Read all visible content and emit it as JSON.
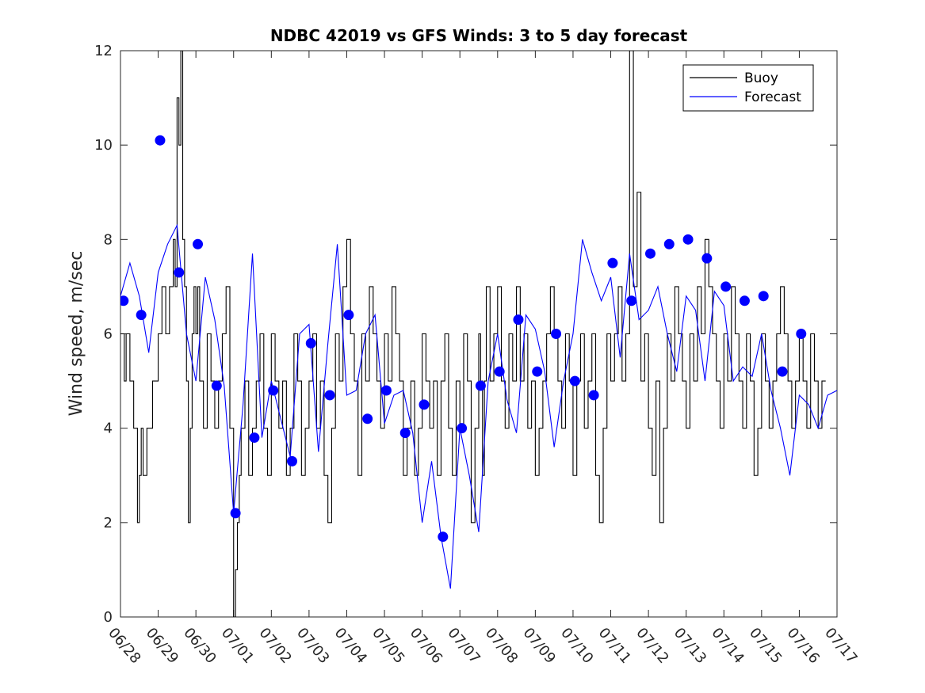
{
  "chart_data": {
    "type": "line",
    "title": "NDBC 42019 vs GFS Winds: 3 to 5 day forecast",
    "xlabel": "",
    "ylabel": "Wind speed, m/sec",
    "xlim": [
      "06/28",
      "07/17"
    ],
    "ylim": [
      0,
      12
    ],
    "x_tick_labels": [
      "06/28",
      "06/29",
      "06/30",
      "07/01",
      "07/02",
      "07/03",
      "07/04",
      "07/05",
      "07/06",
      "07/07",
      "07/08",
      "07/09",
      "07/10",
      "07/11",
      "07/12",
      "07/13",
      "07/14",
      "07/15",
      "07/16",
      "07/17"
    ],
    "y_ticks": [
      0,
      2,
      4,
      6,
      8,
      10,
      12
    ],
    "grid": false,
    "legend_position": "top-right",
    "colors": {
      "buoy": "#000000",
      "forecast": "#0000ff"
    },
    "series": [
      {
        "name": "Buoy",
        "style": "stepped line",
        "x_days_since_06_28": [
          0.0,
          0.1,
          0.15,
          0.25,
          0.35,
          0.45,
          0.5,
          0.55,
          0.6,
          0.7,
          0.85,
          1.0,
          1.1,
          1.2,
          1.3,
          1.4,
          1.45,
          1.5,
          1.55,
          1.6,
          1.65,
          1.7,
          1.75,
          1.8,
          1.85,
          1.9,
          1.95,
          2.0,
          2.05,
          2.1,
          2.2,
          2.3,
          2.4,
          2.5,
          2.6,
          2.7,
          2.8,
          2.9,
          3.0,
          3.05,
          3.1,
          3.15,
          3.2,
          3.3,
          3.4,
          3.5,
          3.6,
          3.7,
          3.8,
          3.9,
          4.0,
          4.1,
          4.2,
          4.3,
          4.4,
          4.5,
          4.6,
          4.7,
          4.8,
          4.9,
          5.0,
          5.1,
          5.2,
          5.3,
          5.4,
          5.5,
          5.6,
          5.7,
          5.8,
          5.9,
          6.0,
          6.1,
          6.2,
          6.3,
          6.4,
          6.5,
          6.6,
          6.7,
          6.8,
          6.9,
          7.0,
          7.1,
          7.2,
          7.3,
          7.4,
          7.5,
          7.6,
          7.7,
          7.8,
          7.9,
          8.0,
          8.1,
          8.2,
          8.3,
          8.4,
          8.5,
          8.6,
          8.7,
          8.8,
          8.9,
          9.0,
          9.1,
          9.2,
          9.3,
          9.4,
          9.5,
          9.55,
          9.6,
          9.65,
          9.7,
          9.8,
          9.9,
          10.0,
          10.1,
          10.2,
          10.3,
          10.4,
          10.5,
          10.6,
          10.7,
          10.8,
          10.9,
          11.0,
          11.1,
          11.2,
          11.3,
          11.4,
          11.5,
          11.6,
          11.7,
          11.8,
          11.9,
          12.0,
          12.1,
          12.2,
          12.3,
          12.4,
          12.5,
          12.6,
          12.7,
          12.8,
          12.9,
          13.0,
          13.1,
          13.2,
          13.3,
          13.4,
          13.5,
          13.6,
          13.7,
          13.8,
          13.9,
          14.0,
          14.1,
          14.2,
          14.3,
          14.4,
          14.5,
          14.6,
          14.7,
          14.8,
          14.9,
          15.0,
          15.1,
          15.2,
          15.3,
          15.4,
          15.5,
          15.6,
          15.7,
          15.8,
          15.9,
          16.0,
          16.1,
          16.2,
          16.3,
          16.4,
          16.5,
          16.6,
          16.7,
          16.8,
          16.9,
          17.0,
          17.1,
          17.2,
          17.3,
          17.4,
          17.5,
          17.6,
          17.7,
          17.8,
          17.9,
          18.0,
          18.1,
          18.2,
          18.3,
          18.4,
          18.5,
          18.6,
          18.7,
          18.8,
          18.9,
          19.0
        ],
        "y": [
          6,
          5,
          6,
          5,
          4,
          2,
          3,
          4,
          3,
          4,
          5,
          6,
          7,
          6,
          7,
          8,
          7,
          11,
          10,
          12,
          8,
          7,
          5,
          2,
          4,
          6,
          7,
          6,
          7,
          5,
          4,
          6,
          5,
          4,
          5,
          6,
          7,
          4,
          0,
          1,
          2,
          3,
          4,
          5,
          3,
          4,
          5,
          6,
          4,
          3,
          6,
          5,
          4,
          5,
          3,
          4,
          6,
          5,
          3,
          4,
          5,
          6,
          4,
          5,
          3,
          2,
          4,
          6,
          5,
          7,
          8,
          6,
          5,
          3,
          6,
          5,
          7,
          6,
          5,
          4,
          6,
          5,
          7,
          6,
          5,
          3,
          4,
          5,
          3,
          4,
          6,
          5,
          4,
          5,
          3,
          5,
          6,
          4,
          3,
          5,
          4,
          6,
          5,
          2,
          4,
          6,
          5,
          3,
          5,
          7,
          5,
          6,
          7,
          5,
          4,
          6,
          5,
          7,
          5,
          6,
          4,
          5,
          3,
          4,
          5,
          6,
          7,
          6,
          5,
          4,
          6,
          5,
          3,
          5,
          6,
          4,
          5,
          6,
          3,
          2,
          4,
          6,
          5,
          6,
          7,
          5,
          6,
          12,
          7,
          9,
          5,
          6,
          4,
          3,
          5,
          2,
          4,
          6,
          5,
          7,
          6,
          5,
          4,
          6,
          5,
          7,
          6,
          8,
          7,
          6,
          5,
          4,
          6,
          5,
          7,
          6,
          5,
          4,
          6,
          5,
          3,
          4,
          6,
          5,
          4,
          5,
          6,
          7,
          6,
          5,
          4,
          5,
          6,
          5,
          4,
          6,
          5,
          4,
          5
        ],
        "note": "Approximate hourly buoy observations, reconstructed at 0.1-day resolution"
      },
      {
        "name": "Forecast",
        "style": "line",
        "x_days_since_06_28": [
          0.0,
          0.25,
          0.5,
          0.75,
          1.0,
          1.25,
          1.5,
          1.75,
          2.0,
          2.25,
          2.5,
          2.75,
          3.0,
          3.25,
          3.5,
          3.75,
          4.0,
          4.25,
          4.5,
          4.75,
          5.0,
          5.25,
          5.5,
          5.75,
          6.0,
          6.25,
          6.5,
          6.75,
          7.0,
          7.25,
          7.5,
          7.75,
          8.0,
          8.25,
          8.5,
          8.75,
          9.0,
          9.25,
          9.5,
          9.75,
          10.0,
          10.25,
          10.5,
          10.75,
          11.0,
          11.25,
          11.5,
          11.75,
          12.0,
          12.25,
          12.5,
          12.75,
          13.0,
          13.25,
          13.5,
          13.75,
          14.0,
          14.25,
          14.5,
          14.75,
          15.0,
          15.25,
          15.5,
          15.75,
          16.0,
          16.25,
          16.5,
          16.75,
          17.0,
          17.25,
          17.5,
          17.75,
          18.0,
          18.25,
          18.5,
          18.75,
          19.0
        ],
        "y": [
          6.8,
          7.5,
          6.8,
          5.6,
          7.3,
          7.9,
          8.3,
          6.0,
          5.0,
          7.2,
          6.3,
          4.9,
          2.2,
          4.5,
          7.7,
          3.8,
          5.0,
          4.2,
          3.4,
          6.0,
          6.2,
          3.5,
          5.8,
          7.9,
          4.7,
          4.8,
          6.0,
          6.4,
          4.1,
          4.7,
          4.8,
          3.9,
          2.0,
          3.3,
          1.7,
          0.6,
          4.0,
          3.0,
          1.8,
          5.0,
          6.0,
          4.6,
          3.9,
          6.4,
          6.1,
          5.2,
          3.6,
          5.0,
          6.0,
          8.0,
          7.3,
          6.7,
          7.2,
          5.5,
          7.7,
          6.3,
          6.5,
          7.0,
          6.0,
          5.2,
          6.8,
          6.5,
          5.0,
          6.9,
          6.6,
          5.0,
          5.3,
          5.1,
          6.0,
          4.8,
          4.0,
          3.0,
          4.7,
          4.5,
          4.0,
          4.7,
          4.8
        ]
      },
      {
        "name": "",
        "style": "markers",
        "marker": "filled-circle",
        "x_days_since_06_28": [
          0.08,
          0.55,
          1.05,
          1.55,
          2.05,
          2.55,
          3.05,
          3.55,
          4.05,
          4.55,
          5.05,
          5.55,
          6.05,
          6.55,
          7.05,
          7.55,
          8.05,
          8.55,
          9.05,
          9.55,
          10.05,
          10.55,
          11.05,
          11.55,
          12.05,
          12.55,
          13.05,
          13.55,
          14.05,
          14.55,
          15.05,
          15.55,
          16.05,
          16.55,
          17.05,
          17.55,
          18.05
        ],
        "y": [
          6.7,
          6.4,
          10.1,
          7.3,
          7.9,
          4.9,
          2.2,
          3.8,
          4.8,
          3.3,
          5.8,
          4.7,
          6.4,
          4.2,
          4.8,
          3.9,
          4.5,
          1.7,
          4.0,
          4.9,
          5.2,
          6.3,
          5.2,
          6.0,
          5.0,
          4.7,
          7.5,
          6.7,
          7.7,
          7.9,
          8.0,
          7.6,
          7.0,
          6.7,
          6.8,
          5.2,
          6.0
        ]
      }
    ],
    "legend": [
      {
        "label": "Buoy",
        "color": "#000000"
      },
      {
        "label": "Forecast",
        "color": "#0000ff"
      }
    ]
  }
}
